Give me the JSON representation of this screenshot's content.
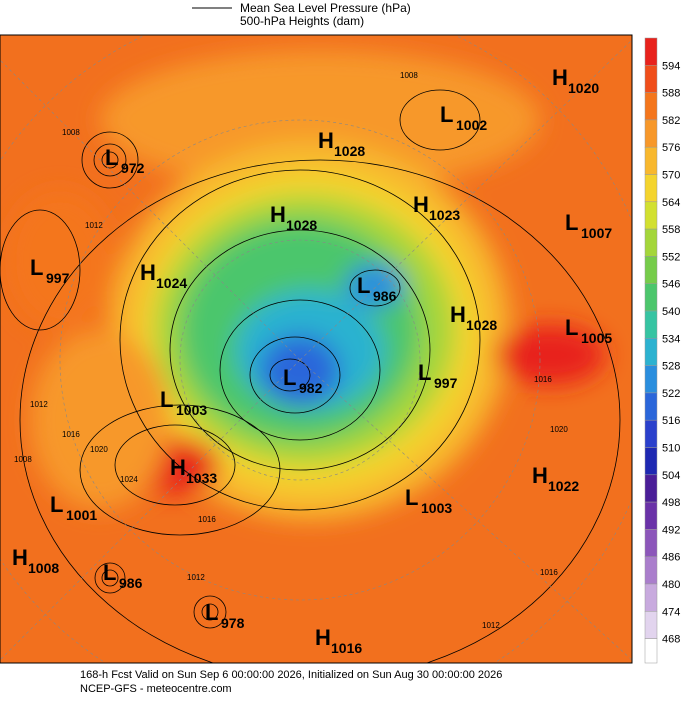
{
  "legend": {
    "items": [
      "Mean Sea Level Pressure (hPa)",
      "500-hPa Heights (dam)"
    ]
  },
  "colorbar": {
    "ticks": [
      594,
      588,
      582,
      576,
      570,
      564,
      558,
      552,
      546,
      540,
      534,
      528,
      522,
      516,
      510,
      504,
      498,
      492,
      486,
      480,
      474,
      468
    ],
    "colors": [
      "#e8221c",
      "#f04e1a",
      "#f4761c",
      "#f7982a",
      "#f8b82e",
      "#f4d42e",
      "#d2e030",
      "#a4d63a",
      "#76cc4a",
      "#4cc66c",
      "#36c4a2",
      "#2cb2d0",
      "#2a8ede",
      "#2a66da",
      "#2a40cc",
      "#1e28b2",
      "#4a1e98",
      "#6a32a8",
      "#8c56ba",
      "#aa7ecc",
      "#c8aade",
      "#e2d4ee"
    ]
  },
  "pressure_centers": [
    {
      "type": "H",
      "value": 1020
    },
    {
      "type": "L",
      "value": 1002
    },
    {
      "type": "H",
      "value": 1028
    },
    {
      "type": "L",
      "value": 972
    },
    {
      "type": "H",
      "value": 1028
    },
    {
      "type": "H",
      "value": 1023
    },
    {
      "type": "L",
      "value": 1007
    },
    {
      "type": "L",
      "value": 997
    },
    {
      "type": "H",
      "value": 1024
    },
    {
      "type": "L",
      "value": 986
    },
    {
      "type": "H",
      "value": 1028
    },
    {
      "type": "L",
      "value": 1005
    },
    {
      "type": "L",
      "value": 997
    },
    {
      "type": "L",
      "value": 982
    },
    {
      "type": "L",
      "value": 1003
    },
    {
      "type": "H",
      "value": 1033
    },
    {
      "type": "H",
      "value": 1022
    },
    {
      "type": "L",
      "value": 1003
    },
    {
      "type": "L",
      "value": 1001
    },
    {
      "type": "H",
      "value": 1008
    },
    {
      "type": "L",
      "value": 986
    },
    {
      "type": "L",
      "value": 978
    },
    {
      "type": "H",
      "value": 1016
    }
  ],
  "contour_labels": [
    1008,
    1008,
    1012,
    1016,
    1020,
    1016,
    1012,
    1012,
    1016,
    1024,
    1020,
    1016,
    1012,
    1008
  ],
  "footer": {
    "line1": "168-h Fcst Valid on Sun Sep  6 00:00:00 2026, Initialized on Sun Aug 30 00:00:00 2026",
    "line2": "NCEP-GFS  - meteocentre.com"
  }
}
